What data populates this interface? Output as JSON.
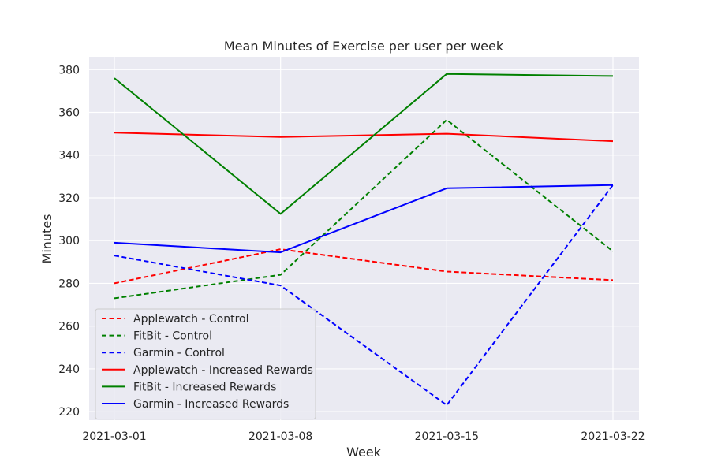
{
  "chart_data": {
    "type": "line",
    "title": "Mean Minutes of Exercise per user per week",
    "xlabel": "Week",
    "ylabel": "Minutes",
    "categories": [
      "2021-03-01",
      "2021-03-08",
      "2021-03-15",
      "2021-03-22"
    ],
    "ylim": [
      216,
      386
    ],
    "yticks": [
      220,
      240,
      260,
      280,
      300,
      320,
      340,
      360,
      380
    ],
    "grid": true,
    "legend_position": "lower-left",
    "series": [
      {
        "name": "Applewatch - Control",
        "color": "#ff0000",
        "style": "dashed",
        "values": [
          280,
          296,
          285.5,
          281.5
        ]
      },
      {
        "name": "FitBit - Control",
        "color": "#008000",
        "style": "dashed",
        "values": [
          273,
          284,
          356.5,
          295
        ]
      },
      {
        "name": "Garmin - Control",
        "color": "#0000ff",
        "style": "dashed",
        "values": [
          293,
          279,
          223,
          326
        ]
      },
      {
        "name": "Applewatch - Increased Rewards",
        "color": "#ff0000",
        "style": "solid",
        "values": [
          350.5,
          348.5,
          350,
          346.5
        ]
      },
      {
        "name": "FitBit - Increased Rewards",
        "color": "#008000",
        "style": "solid",
        "values": [
          376,
          312.5,
          378,
          377
        ]
      },
      {
        "name": "Garmin - Increased Rewards",
        "color": "#0000ff",
        "style": "solid",
        "values": [
          299,
          294.5,
          324.5,
          326
        ]
      }
    ]
  }
}
